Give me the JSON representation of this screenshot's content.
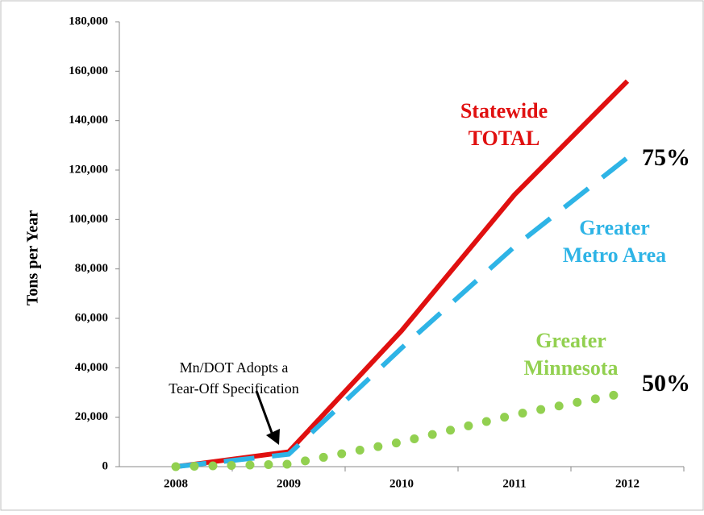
{
  "chart_data": {
    "type": "line",
    "y_label": "Tons per Year",
    "categories": [
      "2008",
      "2009",
      "2010",
      "2011",
      "2012"
    ],
    "series": [
      {
        "name": "Statewide TOTAL",
        "color": "#e01010",
        "style": "solid",
        "values": [
          0,
          6000,
          55000,
          110000,
          156000
        ]
      },
      {
        "name": "Greater Metro Area",
        "color": "#2eb4e6",
        "style": "dashed",
        "values": [
          0,
          5000,
          48000,
          89000,
          125000
        ]
      },
      {
        "name": "Greater Minnesota",
        "color": "#92d050",
        "style": "dotted",
        "values": [
          0,
          1000,
          10000,
          21000,
          30000
        ]
      }
    ],
    "series_labels": [
      [
        "Statewide",
        "TOTAL"
      ],
      [
        "Greater",
        "Metro Area"
      ],
      [
        "Greater",
        "Minnesota"
      ]
    ],
    "annotations": [
      {
        "text": "75%"
      },
      {
        "text": "50%"
      },
      {
        "lines": [
          "Mn/DOT Adopts a",
          "Tear-Off Specification"
        ]
      }
    ],
    "ylim": [
      0,
      180000
    ],
    "yticks": [
      0,
      {
        "value": 20000,
        "label": "20,000"
      },
      {
        "value": 40000,
        "label": "40,000"
      },
      {
        "value": 60000,
        "label": "60,000"
      },
      {
        "value": 80000,
        "label": "80,000"
      },
      {
        "value": 100000,
        "label": "100,000"
      },
      {
        "value": 120000,
        "label": "120,000"
      },
      {
        "value": 140000,
        "label": "140,000"
      },
      {
        "value": 160000,
        "label": "160,000"
      },
      {
        "value": 180000,
        "label": "180,000"
      }
    ]
  }
}
